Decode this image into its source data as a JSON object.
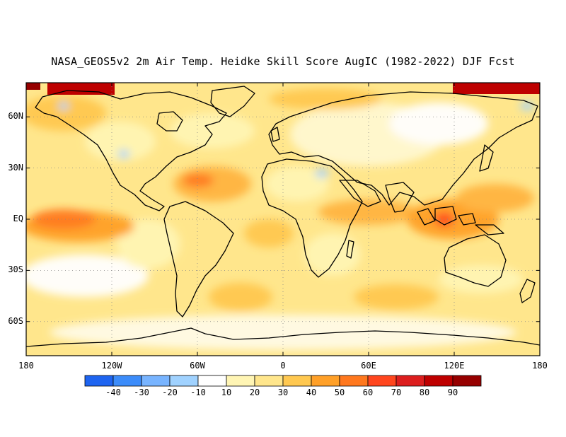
{
  "title": "NASA_GEOS5v2 2m Air Temp. Heidke Skill Score AugIC (1982-2022) DJF Fcst",
  "map": {
    "projection": "cylindrical-equidistant",
    "lon_range": [
      -180,
      180
    ],
    "lat_range": [
      -80,
      80
    ],
    "lat_ticks": [
      {
        "label": "60N",
        "lat": 60
      },
      {
        "label": "30N",
        "lat": 30
      },
      {
        "label": "EQ",
        "lat": 0
      },
      {
        "label": "30S",
        "lat": -30
      },
      {
        "label": "60S",
        "lat": -60
      }
    ],
    "lon_ticks": [
      {
        "label": "180",
        "lon": -180
      },
      {
        "label": "120W",
        "lon": -120
      },
      {
        "label": "60W",
        "lon": -60
      },
      {
        "label": "0",
        "lon": 0
      },
      {
        "label": "60E",
        "lon": 60
      },
      {
        "label": "120E",
        "lon": 120
      },
      {
        "label": "180",
        "lon": 180
      }
    ],
    "grid": "dotted",
    "field": "Heidke skill score, mostly positive (10-40) with peaks 50-70 in tropical Pacific and Maritime Continent; >90 near polar edges"
  },
  "colorbar": {
    "labels": [
      "-40",
      "-30",
      "-20",
      "-10",
      "10",
      "20",
      "30",
      "40",
      "50",
      "60",
      "70",
      "80",
      "90"
    ],
    "colors": [
      "#1e64f0",
      "#3c8cfa",
      "#78b4ff",
      "#a0d2ff",
      "#ffffff",
      "#fff5b4",
      "#ffe68c",
      "#ffc850",
      "#ffa028",
      "#ff781e",
      "#ff461e",
      "#dc1e1e",
      "#be0000",
      "#960000"
    ]
  }
}
